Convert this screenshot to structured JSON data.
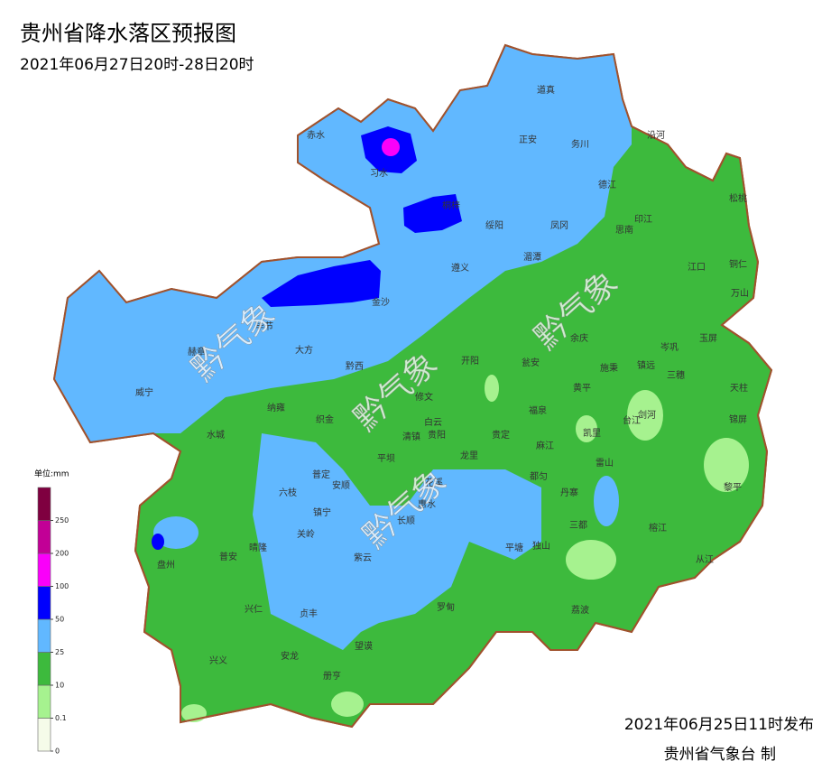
{
  "header": {
    "title": "贵州省降水落区预报图",
    "subtitle": "2021年06月27日20时-28日20时"
  },
  "legend": {
    "unit": "单位:mm",
    "bins": [
      0,
      0.1,
      10,
      25,
      50,
      100,
      200,
      250
    ],
    "colors": [
      "#f5fbe9",
      "#a6f28f",
      "#3dba3d",
      "#61b8ff",
      "#0000fe",
      "#fa00fa",
      "#c20096",
      "#7f0040"
    ]
  },
  "places": [
    "赤水",
    "习水",
    "桐梓",
    "道真",
    "正安",
    "务川",
    "沿河",
    "德江",
    "松桃",
    "印江",
    "思南",
    "凤冈",
    "绥阳",
    "湄潭",
    "遵义",
    "江口",
    "铜仁",
    "万山",
    "金沙",
    "毕节",
    "赫章",
    "大方",
    "黔西",
    "威宁",
    "纳雍",
    "织金",
    "修文",
    "开阳",
    "瓮安",
    "余庆",
    "施秉",
    "镇远",
    "岑巩",
    "玉屏",
    "三穗",
    "天柱",
    "锦屏",
    "黄平",
    "剑河",
    "台江",
    "凯里",
    "福泉",
    "麻江",
    "雷山",
    "黎平",
    "榕江",
    "从江",
    "丹寨",
    "三都",
    "都匀",
    "独山",
    "荔波",
    "平塘",
    "罗甸",
    "惠水",
    "长顺",
    "龙里",
    "贵定",
    "贵阳",
    "清镇",
    "平坝",
    "白云",
    "花溪",
    "水城",
    "六枝",
    "普定",
    "安顺",
    "镇宁",
    "关岭",
    "紫云",
    "晴隆",
    "普安",
    "盘州",
    "兴仁",
    "贞丰",
    "望谟",
    "兴义",
    "安龙",
    "册亨"
  ],
  "watermark": "黔气象",
  "footer": {
    "issued": "2021年06月25日11时发布",
    "agency": "贵州省气象台 制"
  }
}
